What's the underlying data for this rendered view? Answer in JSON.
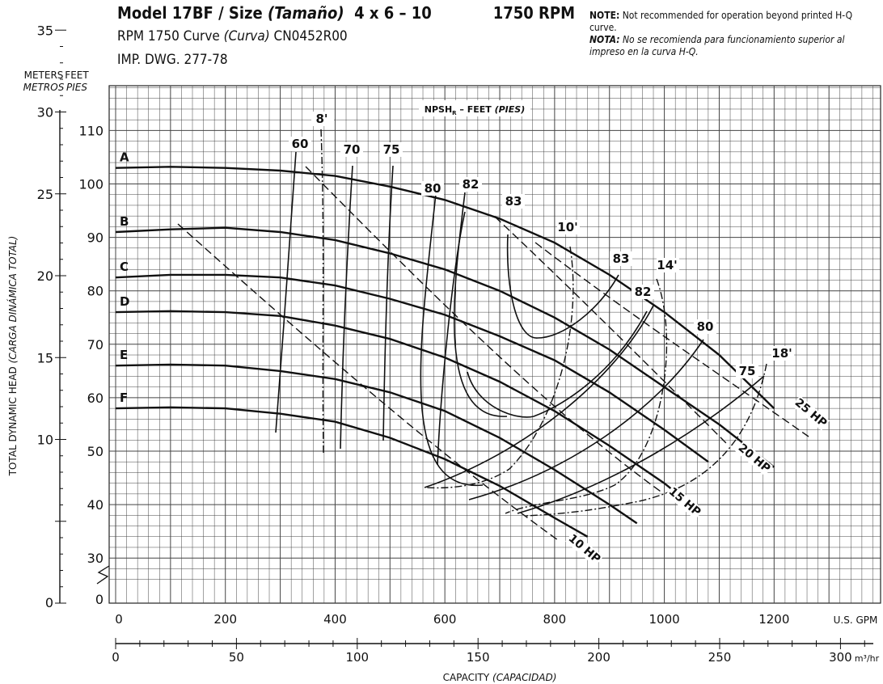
{
  "header": {
    "model": "Model 17BF / Size",
    "tamano": "(Tamaño)",
    "size": "4 x 6 – 10",
    "rpm": "1750 RPM",
    "line2_a": "RPM 1750 Curve",
    "line2_b": "(Curva)",
    "line2_c": "CN0452R00",
    "line3": "IMP. DWG. 277-78"
  },
  "note": {
    "note_label": "NOTE:",
    "note_text": "Not recommended for operation beyond printed H-Q curve.",
    "nota_label": "NOTA:",
    "nota_text": "No se recomienda para funcionamiento superior al impreso en la curva H-Q."
  },
  "chart_data": {
    "type": "line",
    "title": "Model 17BF / Size (Tamaño) 4 x 6 – 10  1750 RPM",
    "xlabel": "CAPACITY (CAPACIDAD)",
    "ylabel": "TOTAL DYNAMIC HEAD (CARGA DINÁMICA TOTAL)",
    "x_units": "U.S. GPM",
    "x2_units": "m³/hr",
    "y_units_left_top": "METERS",
    "y_units_left_bottom": "METROS",
    "y_units_right_top": "FEET",
    "y_units_right_bottom": "PIES",
    "xlim": [
      0,
      1400
    ],
    "ylim": [
      25,
      120
    ],
    "x_ticks": [
      0,
      200,
      400,
      600,
      800,
      1000,
      1200
    ],
    "x2_ticks": [
      0,
      50,
      100,
      150,
      200,
      250,
      300
    ],
    "feet_ticks": [
      30,
      40,
      50,
      60,
      70,
      80,
      90,
      100,
      110
    ],
    "feet_zero": "0",
    "meters_ticks": [
      10,
      15,
      20,
      25,
      30,
      35
    ],
    "meters_zero": "0",
    "grid": true,
    "npsh_title": "NPSHR – FEET (PIES)",
    "series": [
      {
        "name": "A",
        "kind": "impeller",
        "x": [
          0,
          100,
          200,
          300,
          400,
          500,
          600,
          700,
          800,
          900,
          1000,
          1100,
          1200
        ],
        "y": [
          103,
          103.2,
          103,
          102.5,
          101.5,
          99.5,
          97,
          93.5,
          89,
          83,
          76,
          68,
          58
        ]
      },
      {
        "name": "B",
        "kind": "impeller",
        "x": [
          0,
          100,
          200,
          300,
          400,
          500,
          600,
          700,
          800,
          900,
          1000,
          1100,
          1200
        ],
        "y": [
          91,
          91.5,
          91.8,
          91,
          89.5,
          87,
          84,
          80,
          75,
          69,
          62,
          55,
          47
        ]
      },
      {
        "name": "C",
        "kind": "impeller",
        "x": [
          0,
          100,
          200,
          300,
          400,
          500,
          600,
          700,
          800,
          900,
          1000,
          1080
        ],
        "y": [
          82.5,
          83,
          83,
          82.5,
          81,
          78.5,
          75.5,
          71.5,
          67,
          61,
          54,
          48
        ]
      },
      {
        "name": "D",
        "kind": "impeller",
        "x": [
          0,
          100,
          200,
          300,
          400,
          500,
          600,
          700,
          800,
          900,
          1000,
          1030
        ],
        "y": [
          76,
          76.2,
          76,
          75.3,
          73.5,
          71,
          67.5,
          63,
          57.5,
          51,
          44,
          41.5
        ]
      },
      {
        "name": "E",
        "kind": "impeller",
        "x": [
          0,
          100,
          200,
          300,
          400,
          500,
          600,
          700,
          800,
          900,
          950
        ],
        "y": [
          66,
          66.2,
          66,
          65,
          63.5,
          61,
          57.5,
          52.5,
          46.5,
          40,
          36.5
        ]
      },
      {
        "name": "F",
        "kind": "impeller",
        "x": [
          0,
          100,
          200,
          300,
          400,
          500,
          600,
          700,
          800,
          860
        ],
        "y": [
          58,
          58.2,
          58,
          57,
          55.5,
          52.5,
          48.5,
          43.5,
          37.5,
          34
        ]
      }
    ],
    "efficiency_labels": [
      "60",
      "70",
      "75",
      "80",
      "82",
      "83",
      "83",
      "82",
      "80",
      "75"
    ],
    "npsh_labels": [
      "8'",
      "10'",
      "14'",
      "18'"
    ],
    "hp_labels": [
      "10 HP",
      "15 HP",
      "20 HP",
      "25 HP"
    ]
  }
}
